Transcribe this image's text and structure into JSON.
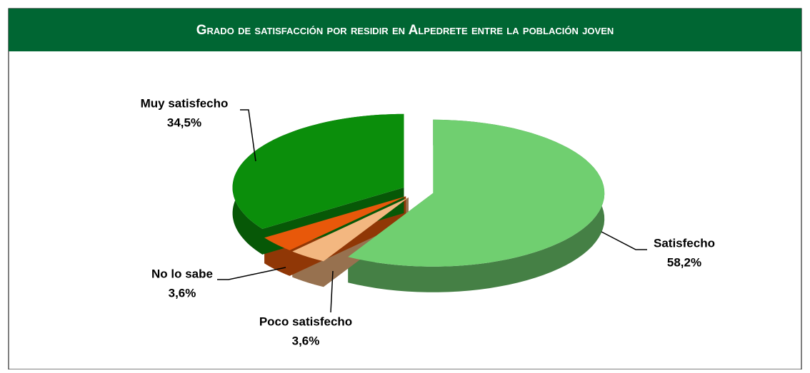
{
  "chart_data": {
    "type": "pie",
    "title": "Grado de satisfacción por residir en Alpedrete entre la población joven",
    "categories": [
      "Satisfecho",
      "Poco satisfecho",
      "No lo sabe",
      "Muy satisfecho"
    ],
    "values": [
      58.2,
      3.6,
      3.6,
      34.5
    ],
    "value_labels": [
      "58,2%",
      "3,6%",
      "3,6%",
      "34,5%"
    ],
    "colors": [
      "#70cf70",
      "#f3b780",
      "#e8580a",
      "#0b8e0b"
    ]
  }
}
